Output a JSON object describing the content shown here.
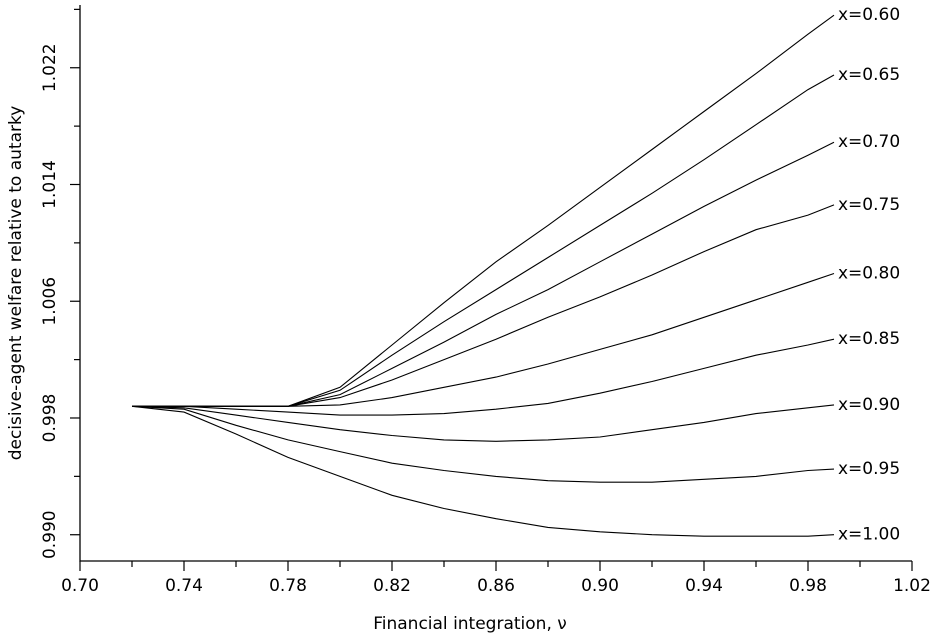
{
  "chart_data": {
    "type": "line",
    "x_label": "Financial integration, ν",
    "y_label": "decisive-agent welfare relative to autarky",
    "x": [
      0.72,
      0.74,
      0.76,
      0.78,
      0.8,
      0.82,
      0.84,
      0.86,
      0.88,
      0.9,
      0.92,
      0.94,
      0.96,
      0.98,
      0.99
    ],
    "series": [
      {
        "name": "x=0.60",
        "color": "#000000",
        "values": [
          0.9988,
          0.9988,
          0.9988,
          0.9988,
          1.0001,
          1.003,
          1.0059,
          1.0087,
          1.0112,
          1.0138,
          1.0164,
          1.019,
          1.0216,
          1.0243,
          1.0256
        ]
      },
      {
        "name": "x=0.65",
        "color": "#000000",
        "values": [
          0.9988,
          0.9988,
          0.9988,
          0.9988,
          0.9999,
          1.0023,
          1.0046,
          1.0068,
          1.009,
          1.0112,
          1.0134,
          1.0157,
          1.0181,
          1.0205,
          1.0215
        ]
      },
      {
        "name": "x=0.70",
        "color": "#000000",
        "values": [
          0.9988,
          0.9988,
          0.9988,
          0.9988,
          0.9996,
          1.0014,
          1.0032,
          1.0051,
          1.0068,
          1.0087,
          1.0106,
          1.0125,
          1.0143,
          1.016,
          1.0169
        ]
      },
      {
        "name": "x=0.75",
        "color": "#000000",
        "values": [
          0.9988,
          0.9988,
          0.9988,
          0.9988,
          0.9994,
          1.0006,
          1.002,
          1.0034,
          1.0049,
          1.0063,
          1.0078,
          1.0094,
          1.0109,
          1.0119,
          1.0126
        ]
      },
      {
        "name": "x=0.80",
        "color": "#000000",
        "values": [
          0.9988,
          0.9988,
          0.9988,
          0.9988,
          0.9989,
          0.9994,
          1.0001,
          1.0008,
          1.0017,
          1.0027,
          1.0037,
          1.0049,
          1.0061,
          1.0073,
          1.0079
        ]
      },
      {
        "name": "x=0.85",
        "color": "#000000",
        "values": [
          0.9988,
          0.9988,
          0.9986,
          0.9984,
          0.9982,
          0.9982,
          0.9983,
          0.9986,
          0.999,
          0.9997,
          1.0005,
          1.0014,
          1.0023,
          1.003,
          1.0034
        ]
      },
      {
        "name": "x=0.90",
        "color": "#000000",
        "values": [
          0.9988,
          0.9987,
          0.9982,
          0.9977,
          0.9972,
          0.9968,
          0.9965,
          0.9964,
          0.9965,
          0.9967,
          0.9972,
          0.9977,
          0.9983,
          0.9987,
          0.9989
        ]
      },
      {
        "name": "x=0.95",
        "color": "#000000",
        "values": [
          0.9988,
          0.9986,
          0.9975,
          0.9965,
          0.9957,
          0.9949,
          0.9944,
          0.994,
          0.9937,
          0.9936,
          0.9936,
          0.9938,
          0.994,
          0.9944,
          0.9945
        ]
      },
      {
        "name": "x=1.00",
        "color": "#000000",
        "values": [
          0.9988,
          0.9984,
          0.9969,
          0.9953,
          0.994,
          0.9927,
          0.9918,
          0.9911,
          0.9905,
          0.9902,
          0.99,
          0.9899,
          0.9899,
          0.9899,
          0.99
        ]
      }
    ],
    "xlim": [
      0.7,
      1.02
    ],
    "xticks": [
      {
        "value": 0.7,
        "label": "0.70"
      },
      0.74,
      0.78,
      0.82,
      0.86,
      {
        "value": 0.9,
        "label": "0.90"
      },
      0.94,
      0.98,
      1.02
    ],
    "xminorticks": [
      0.72,
      0.76,
      0.8,
      0.84,
      0.88,
      0.92,
      0.96,
      1.0
    ],
    "ylim": [
      0.9882,
      1.0263
    ],
    "yticks": [
      {
        "value": 0.99,
        "label": "0.990"
      },
      0.998,
      1.006,
      1.014,
      1.022
    ],
    "yminorticks": [
      0.994,
      1.002,
      1.01,
      1.018,
      1.026
    ],
    "grid": false
  }
}
